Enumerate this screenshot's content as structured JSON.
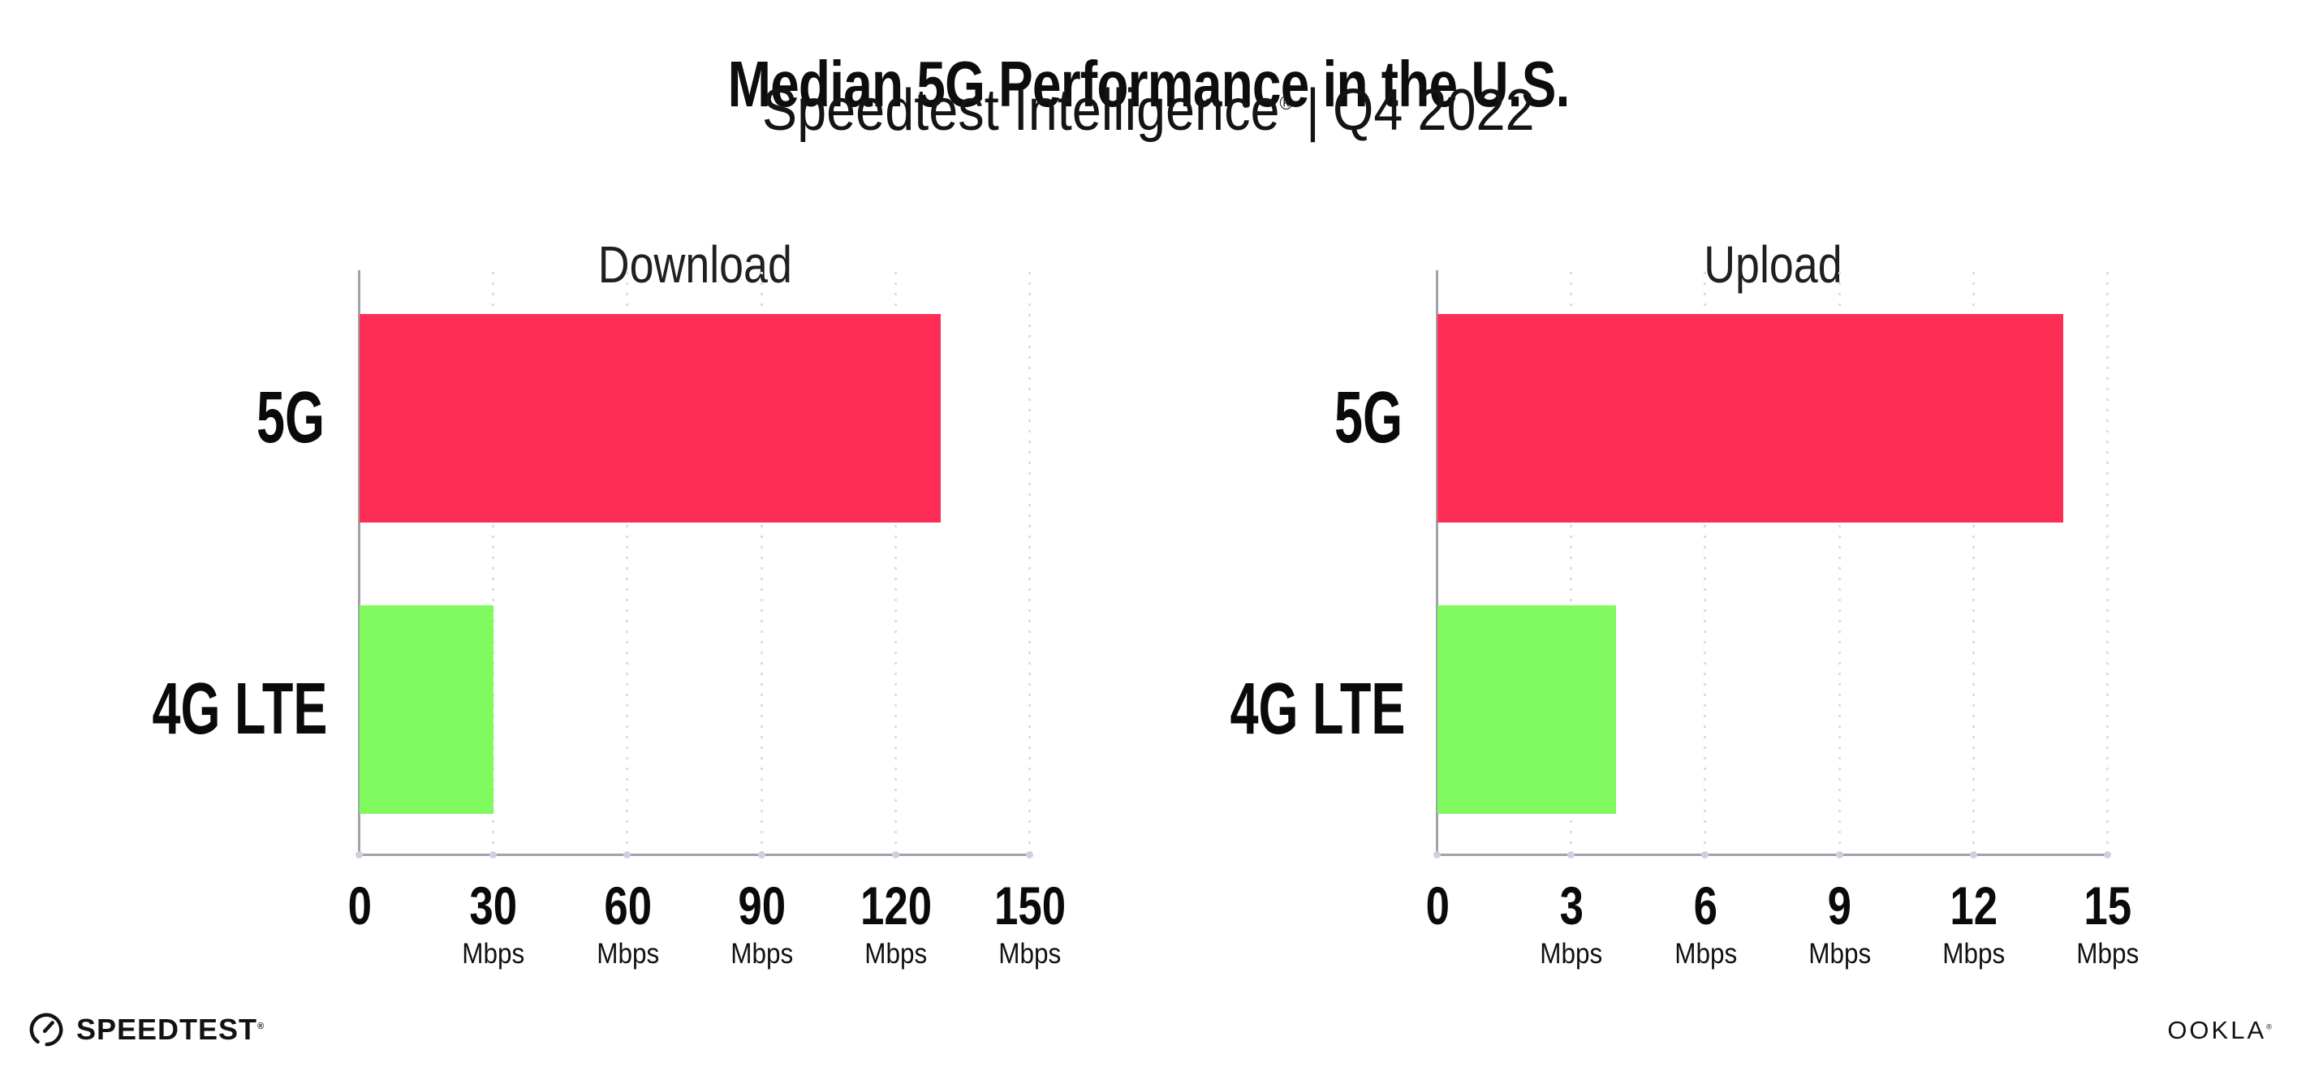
{
  "header": {
    "title": "Median 5G Performance in the U.S.",
    "subtitle": {
      "brand": "Speedtest Intelligence",
      "registered_mark": "®",
      "separator": "|",
      "period": "Q4 2022"
    }
  },
  "chart_data": [
    {
      "type": "bar",
      "orientation": "horizontal",
      "title": "Download",
      "categories": [
        "5G",
        "4G LTE"
      ],
      "values": [
        130,
        30
      ],
      "unit": "Mbps",
      "xlim": [
        0,
        150
      ],
      "xticks": [
        0,
        30,
        60,
        90,
        120,
        150
      ],
      "grid": "vertical-dotted",
      "legend": "none",
      "bar_colors": [
        "#FD2D55",
        "#80FA5F"
      ]
    },
    {
      "type": "bar",
      "orientation": "horizontal",
      "title": "Upload",
      "categories": [
        "5G",
        "4G LTE"
      ],
      "values": [
        14,
        4
      ],
      "unit": "Mbps",
      "xlim": [
        0,
        15
      ],
      "xticks": [
        0,
        3,
        6,
        9,
        12,
        15
      ],
      "grid": "vertical-dotted",
      "legend": "none",
      "bar_colors": [
        "#FD2D55",
        "#80FA5F"
      ]
    }
  ],
  "footer": {
    "speedtest_logo_text": "SPEEDTEST",
    "speedtest_registered_mark": "®",
    "ookla_logo_text": "OOKLA",
    "ookla_registered_mark": "®"
  },
  "colors": {
    "bar_5g": "#FD2D55",
    "bar_4g_lte": "#80FA5F",
    "axis": "#A2A2AA",
    "gridline_dots": "#DCDCE8",
    "title_text": "#0D0D0D",
    "background": "#FFFFFF"
  }
}
